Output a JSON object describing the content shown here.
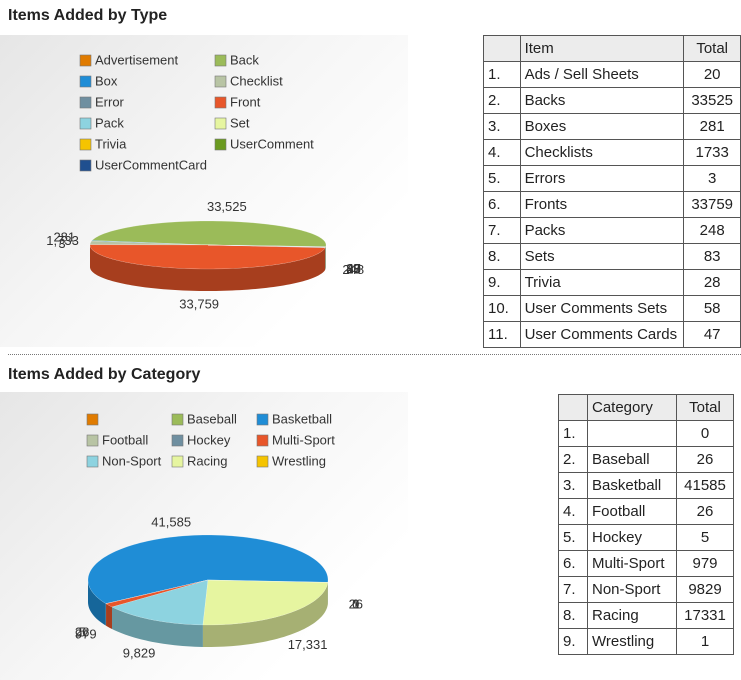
{
  "chart_data": [
    {
      "type": "pie",
      "title": "Items Added by Type",
      "categories": [
        "Advertisement",
        "Back",
        "Box",
        "Checklist",
        "Error",
        "Front",
        "Pack",
        "Set",
        "Trivia",
        "UserComment",
        "UserCommentCard"
      ],
      "values": [
        20,
        33525,
        281,
        1733,
        3,
        33759,
        248,
        83,
        28,
        58,
        47
      ],
      "value_labels": [
        "20",
        "33,525",
        "281",
        "1,733",
        "3",
        "33,759",
        "248",
        "83",
        "28",
        "58",
        "47"
      ],
      "colors": [
        "#e07b00",
        "#9bbb59",
        "#1f8dd6",
        "#b8c4a4",
        "#6f8fa0",
        "#e8562a",
        "#8dd3e0",
        "#e6f5a0",
        "#f5c400",
        "#6a9a1f",
        "#1f4f8f"
      ]
    },
    {
      "type": "pie",
      "title": "Items Added by Category",
      "categories": [
        null,
        "Baseball",
        "Basketball",
        "Football",
        "Hockey",
        "Multi-Sport",
        "Non-Sport",
        "Racing",
        "Wrestling"
      ],
      "values": [
        0,
        26,
        41585,
        26,
        5,
        979,
        9829,
        17331,
        1
      ],
      "value_labels": [
        "0",
        "26",
        "41,585",
        "26",
        "5",
        "979",
        "9,829",
        "17,331",
        "1"
      ],
      "colors": [
        "#e07b00",
        "#9bbb59",
        "#1f8dd6",
        "#b8c4a4",
        "#6f8fa0",
        "#e8562a",
        "#8dd3e0",
        "#e6f5a0",
        "#f5c400"
      ]
    }
  ],
  "tables": [
    {
      "columns": [
        "Item",
        "Total"
      ],
      "rows": [
        [
          "1.",
          "Ads / Sell Sheets",
          20
        ],
        [
          "2.",
          "Backs",
          33525
        ],
        [
          "3.",
          "Boxes",
          281
        ],
        [
          "4.",
          "Checklists",
          1733
        ],
        [
          "5.",
          "Errors",
          3
        ],
        [
          "6.",
          "Fronts",
          33759
        ],
        [
          "7.",
          "Packs",
          248
        ],
        [
          "8.",
          "Sets",
          83
        ],
        [
          "9.",
          "Trivia",
          28
        ],
        [
          "10.",
          "User Comments Sets",
          58
        ],
        [
          "11.",
          "User Comments Cards",
          47
        ]
      ]
    },
    {
      "columns": [
        "Category",
        "Total"
      ],
      "rows": [
        [
          "1.",
          null,
          0
        ],
        [
          "2.",
          "Baseball",
          26
        ],
        [
          "3.",
          "Basketball",
          41585
        ],
        [
          "4.",
          "Football",
          26
        ],
        [
          "5.",
          "Hockey",
          5
        ],
        [
          "6.",
          "Multi-Sport",
          979
        ],
        [
          "7.",
          "Non-Sport",
          9829
        ],
        [
          "8.",
          "Racing",
          17331
        ],
        [
          "9.",
          "Wrestling",
          1
        ]
      ]
    }
  ]
}
